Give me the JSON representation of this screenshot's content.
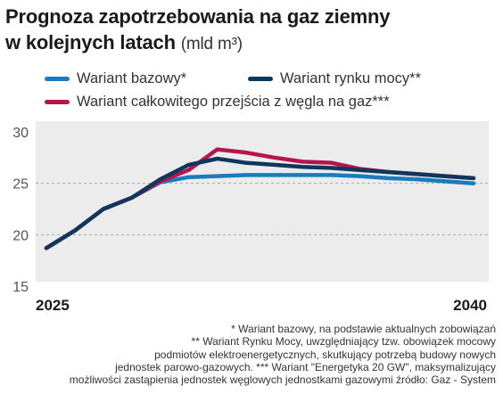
{
  "title": "Prognoza zapotrzebowania na gaz ziemny",
  "title_line2": "w kolejnych latach",
  "unit": "(mld m³)",
  "footnotes": [
    "* Wariant bazowy, na podstawie aktualnych zobowiązań",
    "** Wariant Rynku Mocy, uwzględniający tzw. obowiązek mocowy",
    "podmiotów elektroenergetycznych, skutkujący potrzebą budowy nowych",
    "jednostek parowo-gazowych. *** Wariant \"Energetyka 20 GW\", maksymalizujący",
    "możliwości zastąpienia jednostek węglowych jednostkami gazowymi źródło: Gaz - System"
  ],
  "chart_data": {
    "type": "line",
    "title": "Prognoza zapotrzebowania na gaz ziemny w kolejnych latach",
    "ylabel": "mld m³",
    "xlabel": "",
    "x": [
      2025,
      2026,
      2027,
      2028,
      2029,
      2030,
      2031,
      2032,
      2033,
      2034,
      2035,
      2036,
      2037,
      2038,
      2039,
      2040
    ],
    "x_tick_labels": [
      "2025",
      "2040"
    ],
    "ylim": [
      15,
      30
    ],
    "y_ticks": [
      15,
      20,
      25,
      30
    ],
    "grid": "dashed horizontal",
    "legend_position": "top",
    "series": [
      {
        "name": "Wariant bazowy*",
        "color": "#1b7bbf",
        "values": [
          18.7,
          20.4,
          22.5,
          23.6,
          25.1,
          25.6,
          25.7,
          25.8,
          25.8,
          25.8,
          25.8,
          25.7,
          25.5,
          25.4,
          25.2,
          25.0
        ]
      },
      {
        "name": "Wariant rynku mocy**",
        "color": "#11365c",
        "values": [
          18.7,
          20.4,
          22.5,
          23.6,
          25.4,
          26.8,
          27.4,
          27.0,
          26.8,
          26.6,
          26.5,
          26.3,
          26.1,
          25.9,
          25.7,
          25.5
        ]
      },
      {
        "name": "Wariant całkowitego przejścia z węgla na gaz***",
        "color": "#b7144f",
        "values": [
          18.7,
          20.4,
          22.5,
          23.6,
          25.2,
          26.3,
          28.3,
          28.0,
          27.5,
          27.1,
          27.0,
          26.4,
          26.1,
          25.9,
          25.7,
          25.5
        ]
      }
    ]
  }
}
